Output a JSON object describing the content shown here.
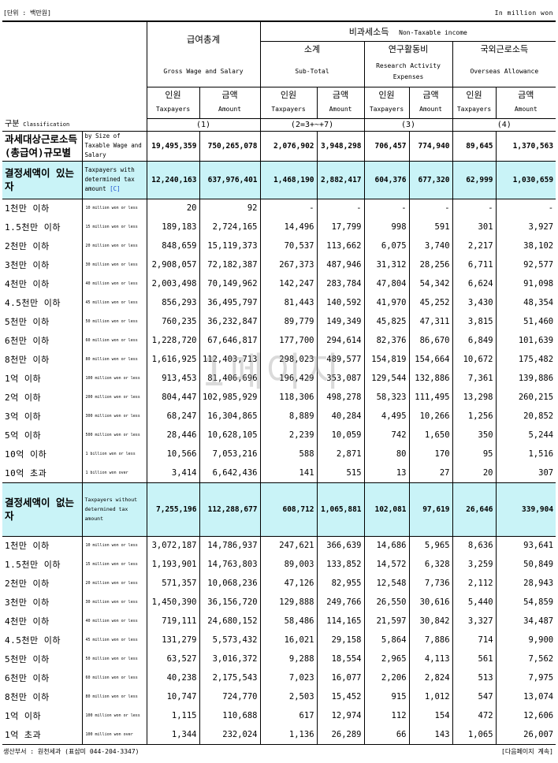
{
  "unit_left": "[단위 : 백만원]",
  "unit_right": "In  million won",
  "header": {
    "gross_ko": "급여총계",
    "gross_en": "Gross Wage and Salary",
    "nontax_ko": "비과세소득",
    "nontax_en": "Non-Taxable income",
    "subtotal_ko": "소계",
    "subtotal_en": "Sub-Total",
    "research_ko": "연구활동비",
    "research_en1": "Research Activity",
    "research_en2": "Expenses",
    "overseas_ko": "국외근로소득",
    "overseas_en": "Overseas Allowance",
    "taxpayers_ko": "인원",
    "taxpayers_en": "Taxpayers",
    "amount_ko": "금액",
    "amount_en": "Amount",
    "class_ko": "구분",
    "class_en": "Classification",
    "col1": "(1)",
    "col2": "(2=3+~+7)",
    "col3": "(3)",
    "col4": "(4)"
  },
  "total": {
    "label": "과세대상근로소득(총급여)규모별",
    "desc": "by Size of Taxable Wage and Salary",
    "values": [
      "19,495,359",
      "750,265,078",
      "2,076,902",
      "3,948,298",
      "706,457",
      "774,940",
      "89,645",
      "1,370,563"
    ]
  },
  "group_a": {
    "label": "결정세액이 있는 자",
    "desc": "Taxpayers with determined tax amount",
    "desc_mark": "[C]",
    "values": [
      "12,240,163",
      "637,976,401",
      "1,468,190",
      "2,882,417",
      "604,376",
      "677,320",
      "62,999",
      "1,030,659"
    ],
    "rows": [
      {
        "label": "1천만 이하",
        "sub": "10 million won or less",
        "v": [
          "20",
          "92",
          "-",
          "-",
          "-",
          "-",
          "-",
          "-"
        ]
      },
      {
        "label": "1.5천만 이하",
        "sub": "15 million won or less",
        "v": [
          "189,183",
          "2,724,165",
          "14,496",
          "17,799",
          "998",
          "591",
          "301",
          "3,927"
        ]
      },
      {
        "label": "2천만 이하",
        "sub": "20 million won or less",
        "v": [
          "848,659",
          "15,119,373",
          "70,537",
          "113,662",
          "6,075",
          "3,740",
          "2,217",
          "38,102"
        ]
      },
      {
        "label": "3천만 이하",
        "sub": "30 million won or less",
        "v": [
          "2,908,057",
          "72,182,387",
          "267,373",
          "487,946",
          "31,312",
          "28,256",
          "6,711",
          "92,577"
        ]
      },
      {
        "label": "4천만 이하",
        "sub": "40 million won or less",
        "v": [
          "2,003,498",
          "70,149,962",
          "142,247",
          "283,784",
          "47,804",
          "54,342",
          "6,624",
          "91,098"
        ]
      },
      {
        "label": "4.5천만 이하",
        "sub": "45 million won or less",
        "v": [
          "856,293",
          "36,495,797",
          "81,443",
          "140,592",
          "41,970",
          "45,252",
          "3,430",
          "48,354"
        ]
      },
      {
        "label": "5천만 이하",
        "sub": "50 million won or less",
        "v": [
          "760,235",
          "36,232,847",
          "89,779",
          "149,349",
          "45,825",
          "47,311",
          "3,815",
          "51,460"
        ]
      },
      {
        "label": "6천만 이하",
        "sub": "60 million won or less",
        "v": [
          "1,228,720",
          "67,646,817",
          "177,700",
          "294,614",
          "82,376",
          "86,670",
          "6,849",
          "101,639"
        ]
      },
      {
        "label": "8천만 이하",
        "sub": "80 million won or less",
        "v": [
          "1,616,925",
          "112,403,713",
          "298,023",
          "489,577",
          "154,819",
          "154,664",
          "10,672",
          "175,482"
        ]
      },
      {
        "label": "1억 이하",
        "sub": "100 million won or less",
        "v": [
          "913,453",
          "81,406,696",
          "196,429",
          "353,087",
          "129,544",
          "132,886",
          "7,361",
          "139,886"
        ]
      },
      {
        "label": "2억 이하",
        "sub": "200 million won or less",
        "v": [
          "804,447",
          "102,985,929",
          "118,306",
          "498,278",
          "58,323",
          "111,495",
          "13,298",
          "260,215"
        ]
      },
      {
        "label": "3억 이하",
        "sub": "300 million won or less",
        "v": [
          "68,247",
          "16,304,865",
          "8,889",
          "40,284",
          "4,495",
          "10,266",
          "1,256",
          "20,852"
        ]
      },
      {
        "label": "5억 이하",
        "sub": "500 million won or less",
        "v": [
          "28,446",
          "10,628,105",
          "2,239",
          "10,059",
          "742",
          "1,650",
          "350",
          "5,244"
        ]
      },
      {
        "label": "10억 이하",
        "sub": "1 billion won or less",
        "v": [
          "10,566",
          "7,053,216",
          "588",
          "2,871",
          "80",
          "170",
          "95",
          "1,516"
        ]
      },
      {
        "label": "10억 초과",
        "sub": "1 billion won over",
        "v": [
          "3,414",
          "6,642,436",
          "141",
          "515",
          "13",
          "27",
          "20",
          "307"
        ]
      }
    ]
  },
  "group_b": {
    "label": "결정세액이 없는 자",
    "desc": "Taxpayers without determined tax amount",
    "values": [
      "7,255,196",
      "112,288,677",
      "608,712",
      "1,065,881",
      "102,081",
      "97,619",
      "26,646",
      "339,904"
    ],
    "rows": [
      {
        "label": "1천만 이하",
        "sub": "10 million won or less",
        "v": [
          "3,072,187",
          "14,786,937",
          "247,621",
          "366,639",
          "14,686",
          "5,965",
          "8,636",
          "93,641"
        ]
      },
      {
        "label": "1.5천만 이하",
        "sub": "15 million won or less",
        "v": [
          "1,193,901",
          "14,763,803",
          "89,003",
          "133,852",
          "14,572",
          "6,328",
          "3,259",
          "50,849"
        ]
      },
      {
        "label": "2천만 이하",
        "sub": "20 million won or less",
        "v": [
          "571,357",
          "10,068,236",
          "47,126",
          "82,955",
          "12,548",
          "7,736",
          "2,112",
          "28,943"
        ]
      },
      {
        "label": "3천만 이하",
        "sub": "30 million won or less",
        "v": [
          "1,450,390",
          "36,156,720",
          "129,888",
          "249,766",
          "26,550",
          "30,616",
          "5,440",
          "54,859"
        ]
      },
      {
        "label": "4천만 이하",
        "sub": "40 million won or less",
        "v": [
          "719,111",
          "24,680,152",
          "58,486",
          "114,165",
          "21,597",
          "30,842",
          "3,327",
          "34,487"
        ]
      },
      {
        "label": "4.5천만 이하",
        "sub": "45 million won or less",
        "v": [
          "131,279",
          "5,573,432",
          "16,021",
          "29,158",
          "5,864",
          "7,886",
          "714",
          "9,900"
        ]
      },
      {
        "label": "5천만 이하",
        "sub": "50 million won or less",
        "v": [
          "63,527",
          "3,016,372",
          "9,288",
          "18,554",
          "2,965",
          "4,113",
          "561",
          "7,562"
        ]
      },
      {
        "label": "6천만 이하",
        "sub": "60 million won or less",
        "v": [
          "40,238",
          "2,175,543",
          "7,023",
          "16,077",
          "2,206",
          "2,824",
          "513",
          "7,975"
        ]
      },
      {
        "label": "8천만 이하",
        "sub": "80 million won or less",
        "v": [
          "10,747",
          "724,770",
          "2,503",
          "15,452",
          "915",
          "1,012",
          "547",
          "13,074"
        ]
      },
      {
        "label": "1억 이하",
        "sub": "100 million won or less",
        "v": [
          "1,115",
          "110,688",
          "617",
          "12,974",
          "112",
          "154",
          "472",
          "12,606"
        ]
      },
      {
        "label": "1억 초과",
        "sub": "100 million won over",
        "v": [
          "1,344",
          "232,024",
          "1,136",
          "26,289",
          "66",
          "143",
          "1,065",
          "26,007"
        ]
      }
    ]
  },
  "footer_left": "생산부서 : 원천세과 (표삼미 044-204-3347)",
  "footer_right": "[다음페이지 계속]",
  "watermark": "1페이지"
}
